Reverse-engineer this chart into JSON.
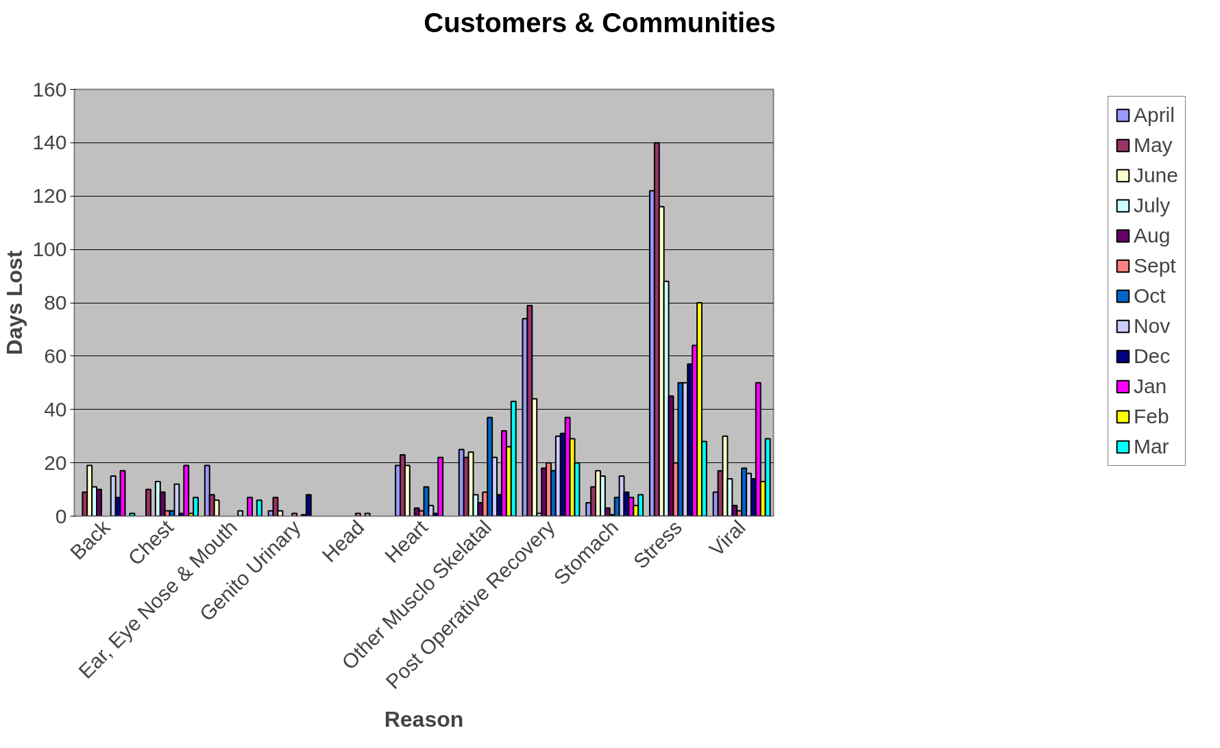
{
  "chart_data": {
    "type": "bar",
    "title": "Customers & Communities",
    "xlabel": "Reason",
    "ylabel": "Days Lost",
    "categories": [
      "Back",
      "Chest",
      "Ear, Eye Nose & Mouth",
      "Genito Urinary",
      "Head",
      "Heart",
      "Other Musclo Skelatal",
      "Post Operative Recovery",
      "Stomach",
      "Stress",
      "Viral"
    ],
    "ylim": [
      0,
      160
    ],
    "yticks": [
      0,
      20,
      40,
      60,
      80,
      100,
      120,
      140,
      160
    ],
    "grid": "y",
    "legend": "right",
    "series": [
      {
        "name": "April",
        "color": "#9999ff",
        "values": [
          null,
          null,
          19,
          2,
          null,
          19,
          25,
          74,
          5,
          122,
          9
        ]
      },
      {
        "name": "May",
        "color": "#993366",
        "values": [
          9,
          10,
          8,
          7,
          null,
          23,
          22,
          79,
          11,
          140,
          17
        ]
      },
      {
        "name": "June",
        "color": "#ffffcc",
        "values": [
          19,
          null,
          6,
          2,
          null,
          19,
          24,
          44,
          17,
          116,
          30
        ]
      },
      {
        "name": "July",
        "color": "#ccffff",
        "values": [
          11,
          13,
          null,
          null,
          null,
          null,
          8,
          1,
          15,
          88,
          14
        ]
      },
      {
        "name": "Aug",
        "color": "#660066",
        "values": [
          10,
          9,
          null,
          null,
          null,
          3,
          5,
          18,
          3,
          45,
          4
        ]
      },
      {
        "name": "Sept",
        "color": "#ff8080",
        "values": [
          null,
          2,
          null,
          1,
          1,
          2,
          9,
          20,
          0.5,
          20,
          2
        ]
      },
      {
        "name": "Oct",
        "color": "#0066cc",
        "values": [
          null,
          2,
          null,
          null,
          null,
          11,
          37,
          17,
          7,
          50,
          18
        ]
      },
      {
        "name": "Nov",
        "color": "#ccccff",
        "values": [
          15,
          12,
          2,
          0.5,
          1,
          4,
          22,
          30,
          15,
          50,
          16
        ]
      },
      {
        "name": "Dec",
        "color": "#000080",
        "values": [
          7,
          1,
          null,
          8,
          null,
          1,
          8,
          31,
          9,
          57,
          14
        ]
      },
      {
        "name": "Jan",
        "color": "#ff00ff",
        "values": [
          17,
          19,
          7,
          null,
          null,
          22,
          32,
          37,
          7,
          64,
          50
        ]
      },
      {
        "name": "Feb",
        "color": "#ffff00",
        "values": [
          null,
          1,
          null,
          null,
          null,
          null,
          26,
          29,
          4,
          80,
          13
        ]
      },
      {
        "name": "Mar",
        "color": "#00ffff",
        "values": [
          1,
          7,
          6,
          null,
          null,
          null,
          43,
          20,
          8,
          28,
          29
        ]
      }
    ]
  }
}
